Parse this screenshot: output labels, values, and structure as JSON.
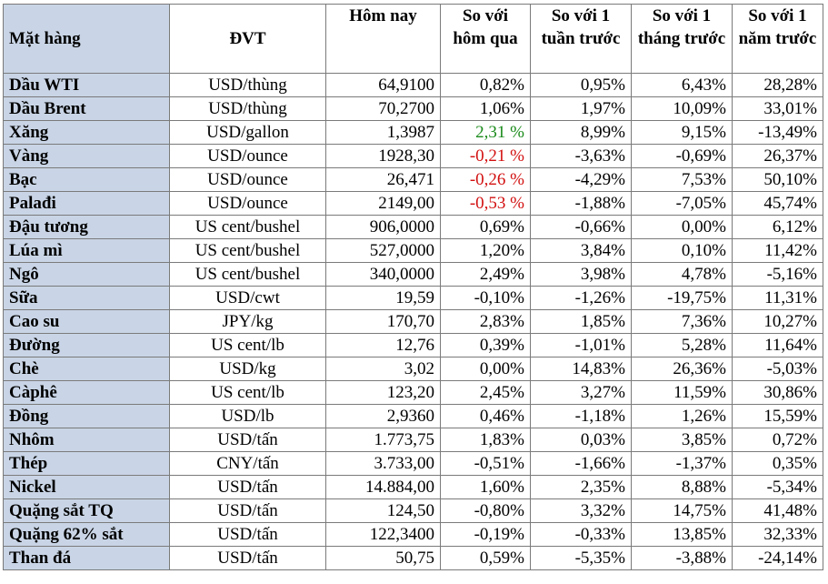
{
  "headers": {
    "item": "Mặt hàng",
    "unit": "ĐVT",
    "today": "Hôm nay",
    "vs_yesterday": "So với hôm qua",
    "vs_week": "So với 1 tuần trước",
    "vs_month": "So với 1 tháng trước",
    "vs_year": "So với 1 năm trước"
  },
  "rows": [
    {
      "name": "Dầu WTI",
      "unit": "USD/thùng",
      "today": "64,9100",
      "d1": "0,82%",
      "w1": "0,95%",
      "m1": "6,43%",
      "y1": "28,28%",
      "d1_color": ""
    },
    {
      "name": "Dầu Brent",
      "unit": "USD/thùng",
      "today": "70,2700",
      "d1": "1,06%",
      "w1": "1,97%",
      "m1": "10,09%",
      "y1": "33,01%",
      "d1_color": ""
    },
    {
      "name": "Xăng",
      "unit": "USD/gallon",
      "today": "1,3987",
      "d1": "2,31 %",
      "w1": "8,99%",
      "m1": "9,15%",
      "y1": "-13,49%",
      "d1_color": "green"
    },
    {
      "name": "Vàng",
      "unit": "USD/ounce",
      "today": "1928,30",
      "d1": "-0,21 %",
      "w1": "-3,63%",
      "m1": "-0,69%",
      "y1": "26,37%",
      "d1_color": "red"
    },
    {
      "name": "Bạc",
      "unit": "USD/ounce",
      "today": "26,471",
      "d1": "-0,26 %",
      "w1": "-4,29%",
      "m1": "7,53%",
      "y1": "50,10%",
      "d1_color": "red"
    },
    {
      "name": "Palađi",
      "unit": "USD/ounce",
      "today": "2149,00",
      "d1": "-0,53 %",
      "w1": "-1,88%",
      "m1": "-7,05%",
      "y1": "45,74%",
      "d1_color": "red"
    },
    {
      "name": "Đậu tương",
      "unit": "US cent/bushel",
      "today": "906,0000",
      "d1": "0,69%",
      "w1": "-0,66%",
      "m1": "0,00%",
      "y1": "6,12%",
      "d1_color": ""
    },
    {
      "name": "Lúa mì",
      "unit": "US cent/bushel",
      "today": "527,0000",
      "d1": "1,20%",
      "w1": "3,84%",
      "m1": "0,10%",
      "y1": "11,42%",
      "d1_color": ""
    },
    {
      "name": "Ngô",
      "unit": "US cent/bushel",
      "today": "340,0000",
      "d1": "2,49%",
      "w1": "3,98%",
      "m1": "4,78%",
      "y1": "-5,16%",
      "d1_color": ""
    },
    {
      "name": "Sữa",
      "unit": "USD/cwt",
      "today": "19,59",
      "d1": "-0,10%",
      "w1": "-1,26%",
      "m1": "-19,75%",
      "y1": "11,31%",
      "d1_color": ""
    },
    {
      "name": "Cao su",
      "unit": "JPY/kg",
      "today": "170,70",
      "d1": "2,83%",
      "w1": "1,85%",
      "m1": "7,36%",
      "y1": "10,27%",
      "d1_color": ""
    },
    {
      "name": "Đường",
      "unit": "US cent/lb",
      "today": "12,76",
      "d1": "0,39%",
      "w1": "-1,01%",
      "m1": "5,28%",
      "y1": "11,64%",
      "d1_color": ""
    },
    {
      "name": "Chè",
      "unit": "USD/kg",
      "today": "3,02",
      "d1": "0,00%",
      "w1": "14,83%",
      "m1": "26,36%",
      "y1": "-5,03%",
      "d1_color": ""
    },
    {
      "name": "Càphê",
      "unit": "US cent/lb",
      "today": "123,20",
      "d1": "2,45%",
      "w1": "3,27%",
      "m1": "11,59%",
      "y1": "30,86%",
      "d1_color": ""
    },
    {
      "name": "Đồng",
      "unit": "USD/lb",
      "today": "2,9360",
      "d1": "0,46%",
      "w1": "-1,18%",
      "m1": "1,26%",
      "y1": "15,59%",
      "d1_color": ""
    },
    {
      "name": "Nhôm",
      "unit": "USD/tấn",
      "today": "1.773,75",
      "d1": "1,83%",
      "w1": "0,03%",
      "m1": "3,85%",
      "y1": "0,72%",
      "d1_color": ""
    },
    {
      "name": "Thép",
      "unit": "CNY/tấn",
      "today": "3.733,00",
      "d1": "-0,51%",
      "w1": "-1,66%",
      "m1": "-1,37%",
      "y1": "0,35%",
      "d1_color": ""
    },
    {
      "name": "Nickel",
      "unit": "USD/tấn",
      "today": "14.884,00",
      "d1": "1,60%",
      "w1": "2,35%",
      "m1": "8,88%",
      "y1": "-5,34%",
      "d1_color": ""
    },
    {
      "name": "Quặng sắt TQ",
      "unit": "USD/tấn",
      "today": "124,50",
      "d1": "-0,80%",
      "w1": "3,32%",
      "m1": "14,75%",
      "y1": "41,48%",
      "d1_color": ""
    },
    {
      "name": "Quặng 62% sắt",
      "unit": "USD/tấn",
      "today": "122,3400",
      "d1": "-0,19%",
      "w1": "-0,33%",
      "m1": "13,85%",
      "y1": "32,33%",
      "d1_color": ""
    },
    {
      "name": "Than đá",
      "unit": "USD/tấn",
      "today": "50,75",
      "d1": "0,59%",
      "w1": "-5,35%",
      "m1": "-3,88%",
      "y1": "-24,14%",
      "d1_color": ""
    }
  ]
}
